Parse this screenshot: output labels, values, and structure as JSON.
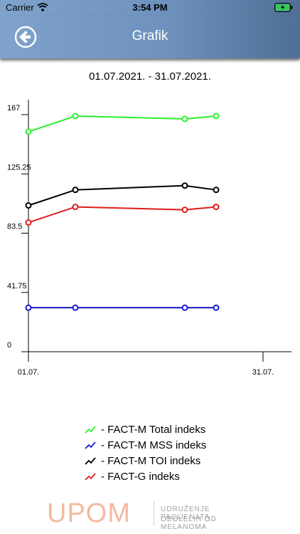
{
  "status_bar": {
    "carrier": "Carrier",
    "time": "3:54 PM"
  },
  "header": {
    "title": "Grafik"
  },
  "date_range": "01.07.2021. - 31.07.2021.",
  "chart_data": {
    "type": "line",
    "x_ticks": [
      "01.07.",
      "31.07."
    ],
    "y_ticks": [
      "0",
      "41.75",
      "83.5",
      "125.25",
      "167"
    ],
    "xlim": [
      1,
      31
    ],
    "ylim": [
      0,
      167
    ],
    "series": [
      {
        "name": "FACT-M Total indeks",
        "color": "#2cf02c",
        "x": [
          1,
          7,
          21,
          25
        ],
        "y": [
          155,
          166,
          164,
          166
        ]
      },
      {
        "name": "FACT-M MSS indeks",
        "color": "#1a1ad0",
        "x": [
          1,
          7,
          21,
          25
        ],
        "y": [
          31,
          31,
          31,
          31
        ]
      },
      {
        "name": "FACT-M TOI indeks",
        "color": "#000000",
        "x": [
          1,
          7,
          21,
          25
        ],
        "y": [
          103,
          114,
          117,
          114
        ]
      },
      {
        "name": "FACT-G indeks",
        "color": "#dd1c1c",
        "x": [
          1,
          7,
          21,
          25
        ],
        "y": [
          91,
          102,
          100,
          102
        ]
      }
    ]
  },
  "legend": [
    {
      "label": " - FACT-M Total indeks",
      "color": "#2cf02c"
    },
    {
      "label": " - FACT-M MSS indeks",
      "color": "#1a1ad0"
    },
    {
      "label": " - FACT-M TOI indeks",
      "color": "#000000"
    },
    {
      "label": " - FACT-G indeks",
      "color": "#dd1c1c"
    }
  ],
  "logo": {
    "word": "UPOM",
    "line1": "UDRUŽENJE PACIJENATA",
    "line2": "OBOLELIH OD MELANOMA"
  }
}
